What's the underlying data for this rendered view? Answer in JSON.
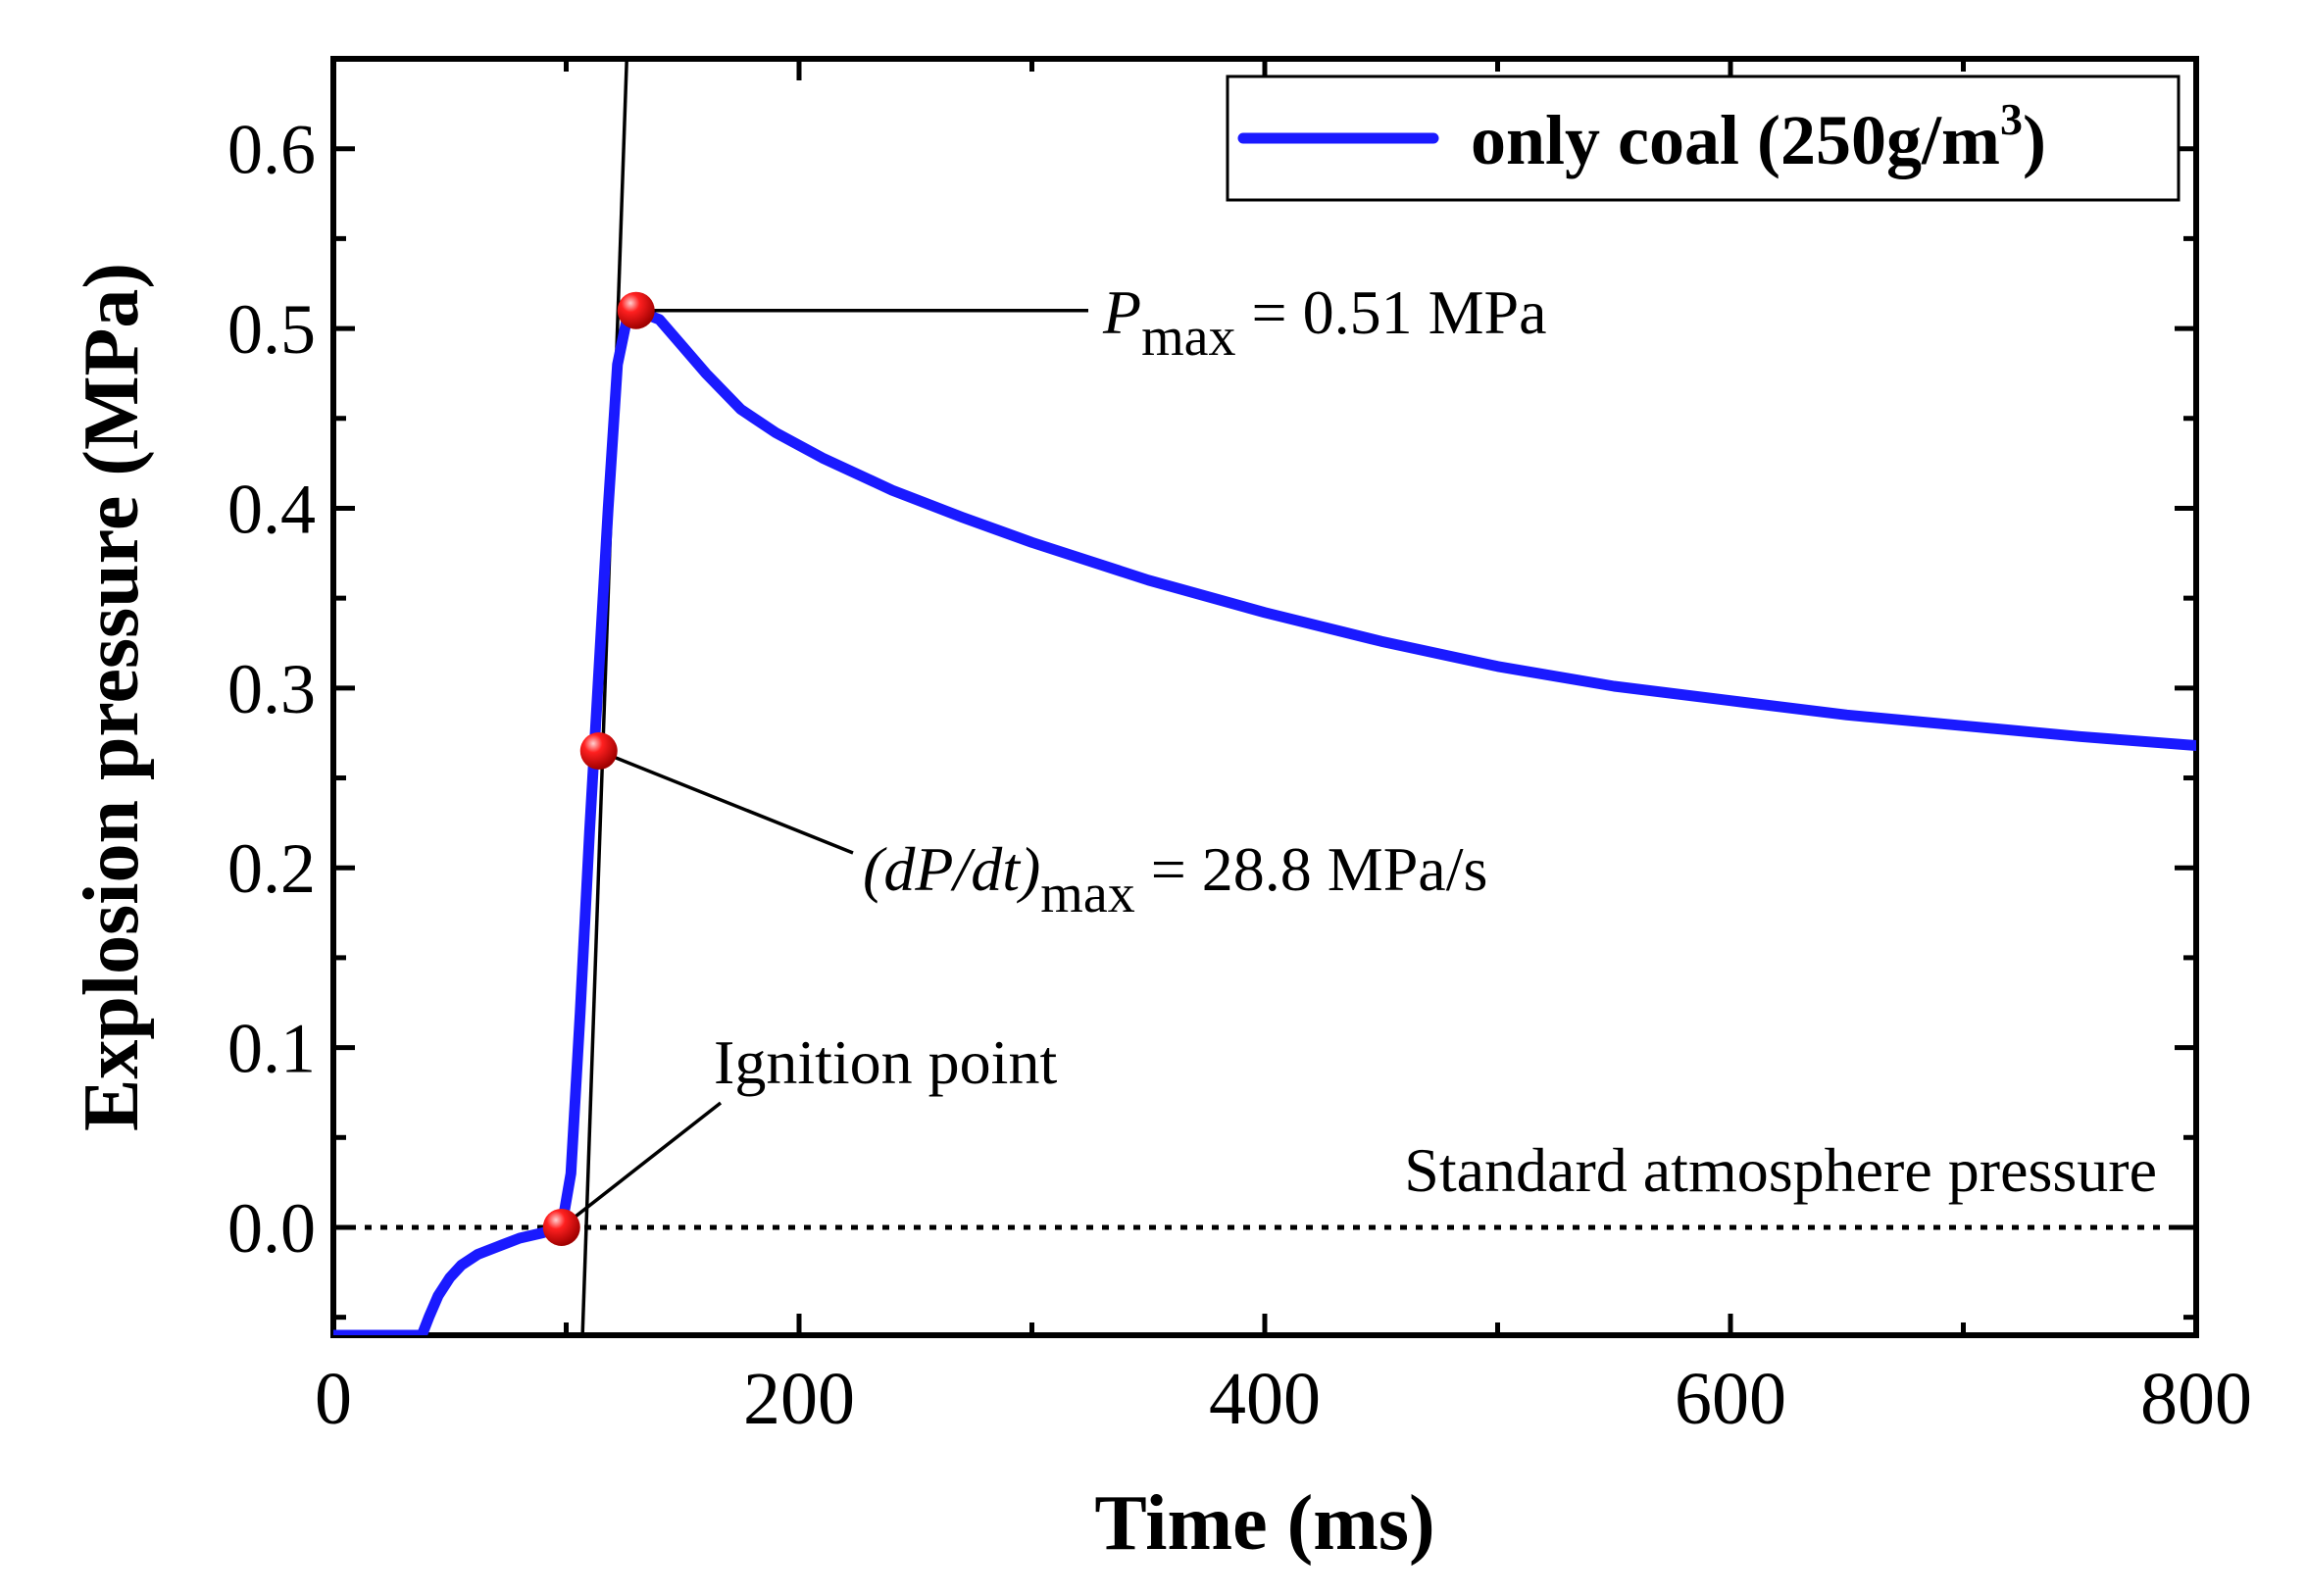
{
  "chart_data": {
    "type": "line",
    "title": "",
    "xlabel": "Time (ms)",
    "ylabel": "Explosion pressure (MPa)",
    "xlim": [
      0,
      800
    ],
    "ylim": [
      -0.06,
      0.65
    ],
    "xticks": [
      0,
      200,
      400,
      600,
      800
    ],
    "xtick_labels": [
      "0",
      "200",
      "400",
      "600",
      "800"
    ],
    "yticks": [
      0.0,
      0.1,
      0.2,
      0.3,
      0.4,
      0.5,
      0.6
    ],
    "ytick_labels": [
      "0.0",
      "0.1",
      "0.2",
      "0.3",
      "0.4",
      "0.5",
      "0.6"
    ],
    "grid": false,
    "legend": {
      "position": "top-right",
      "label": "only coal (250g/m",
      "label_sup": "3",
      "label_end": ")"
    },
    "series": [
      {
        "name": "only coal (250g/m3)",
        "color": "#1a1aff",
        "x": [
          0,
          38,
          41,
          45,
          50,
          55,
          62,
          70,
          80,
          90,
          98,
          102,
          106,
          110,
          114,
          118,
          122,
          126,
          130,
          140,
          150,
          160,
          175,
          190,
          210,
          240,
          270,
          300,
          350,
          400,
          450,
          500,
          550,
          600,
          650,
          700,
          750,
          800
        ],
        "y": [
          -0.06,
          -0.06,
          -0.05,
          -0.038,
          -0.028,
          -0.021,
          -0.015,
          -0.011,
          -0.006,
          -0.003,
          0.0,
          0.03,
          0.12,
          0.22,
          0.31,
          0.4,
          0.48,
          0.505,
          0.51,
          0.505,
          0.49,
          0.475,
          0.455,
          0.442,
          0.428,
          0.41,
          0.395,
          0.381,
          0.36,
          0.342,
          0.326,
          0.312,
          0.301,
          0.293,
          0.285,
          0.279,
          0.273,
          0.268
        ]
      }
    ],
    "reference_lines": [
      {
        "name": "Standard atmosphere pressure",
        "y": 0.0,
        "style": "dotted"
      }
    ],
    "tangent_line": {
      "x1": 107,
      "y1": -0.06,
      "x2": 126,
      "y2": 0.65
    },
    "markers": [
      {
        "name": "Ignition point",
        "x": 98,
        "y": 0.0,
        "color": "#ff0000"
      },
      {
        "name": "dpdt-max",
        "x": 114,
        "y": 0.265,
        "color": "#ff0000"
      },
      {
        "name": "p-max",
        "x": 130,
        "y": 0.51,
        "color": "#ff0000"
      }
    ],
    "annotations": {
      "pmax": {
        "symbol": "P",
        "sub": "max",
        "text": " = 0.51 MPa",
        "x": 130,
        "y": 0.51
      },
      "dpdt": {
        "symbol": "(dP/dt)",
        "sub": "max",
        "text": " = 28.8 MPa/s",
        "x": 114,
        "y": 0.265
      },
      "ignition": {
        "text": "Ignition point",
        "x": 98,
        "y": 0.0
      },
      "atmosphere": {
        "text": "Standard atmosphere pressure"
      }
    }
  }
}
